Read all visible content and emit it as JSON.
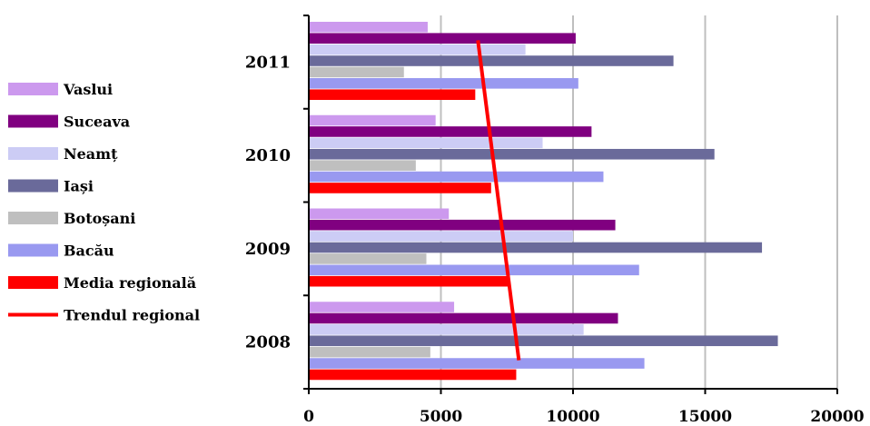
{
  "chart_data": {
    "type": "bar",
    "orientation": "horizontal",
    "categories": [
      "2008",
      "2009",
      "2010",
      "2011"
    ],
    "series": [
      {
        "name": "Vaslui",
        "color": "#cc99ee",
        "values": [
          5500,
          5300,
          4800,
          4500
        ]
      },
      {
        "name": "Suceava",
        "color": "#800080",
        "values": [
          11700,
          11600,
          10700,
          10100
        ]
      },
      {
        "name": "Neamț",
        "color": "#ccccf5",
        "values": [
          10400,
          10000,
          8850,
          8200
        ]
      },
      {
        "name": "Iași",
        "color": "#6a6a9a",
        "values": [
          17750,
          17150,
          15350,
          13800
        ]
      },
      {
        "name": "Botoșani",
        "color": "#bfbfbf",
        "values": [
          4600,
          4450,
          4050,
          3600
        ]
      },
      {
        "name": "Bacău",
        "color": "#9999f0",
        "values": [
          12700,
          12500,
          11150,
          10200
        ]
      },
      {
        "name": "Media regională",
        "color": "#ff0000",
        "values": [
          7850,
          7600,
          6900,
          6300
        ]
      }
    ],
    "trend": {
      "name": "Trendul regional",
      "color": "#ff0000",
      "values": [
        7950,
        6400
      ]
    },
    "x_ticks": [
      "0",
      "5000",
      "10000",
      "15000",
      "20000"
    ],
    "xlim": [
      0,
      20000
    ],
    "grid": true,
    "legend_position": "left"
  }
}
